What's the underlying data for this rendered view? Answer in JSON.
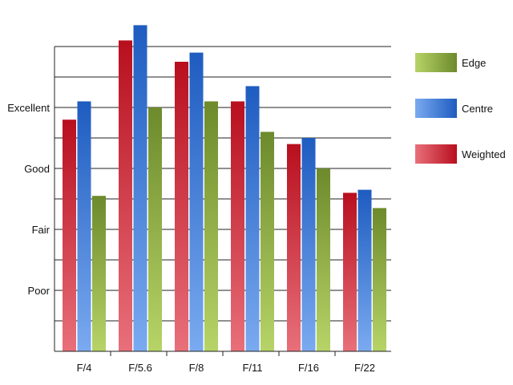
{
  "chart_data": {
    "type": "bar",
    "title": "",
    "xlabel": "",
    "ylabel": "",
    "categories": [
      "F/4",
      "F/5.6",
      "F/8",
      "F/11",
      "F/16",
      "F/22"
    ],
    "y_tick_labels": [
      {
        "label": "Poor",
        "value": 2
      },
      {
        "label": "Fair",
        "value": 4
      },
      {
        "label": "Good",
        "value": 6
      },
      {
        "label": "Excellent",
        "value": 8
      }
    ],
    "ylim": [
      0,
      10
    ],
    "grid": true,
    "legend_position": "right",
    "series": [
      {
        "name": "Weighted",
        "values": [
          7.6,
          10.2,
          9.5,
          8.2,
          6.8,
          5.2
        ],
        "color_light": "#e8707a",
        "color_dark": "#b80f1e"
      },
      {
        "name": "Centre",
        "values": [
          8.2,
          10.7,
          9.8,
          8.7,
          7.0,
          5.3
        ],
        "color_light": "#7aaaf0",
        "color_dark": "#1e5cc0"
      },
      {
        "name": "Edge",
        "values": [
          5.1,
          8.0,
          8.2,
          7.2,
          6.0,
          4.7
        ],
        "color_light": "#b7d468",
        "color_dark": "#6d8a2c"
      }
    ],
    "legend_order": [
      "Edge",
      "Centre",
      "Weighted"
    ]
  }
}
